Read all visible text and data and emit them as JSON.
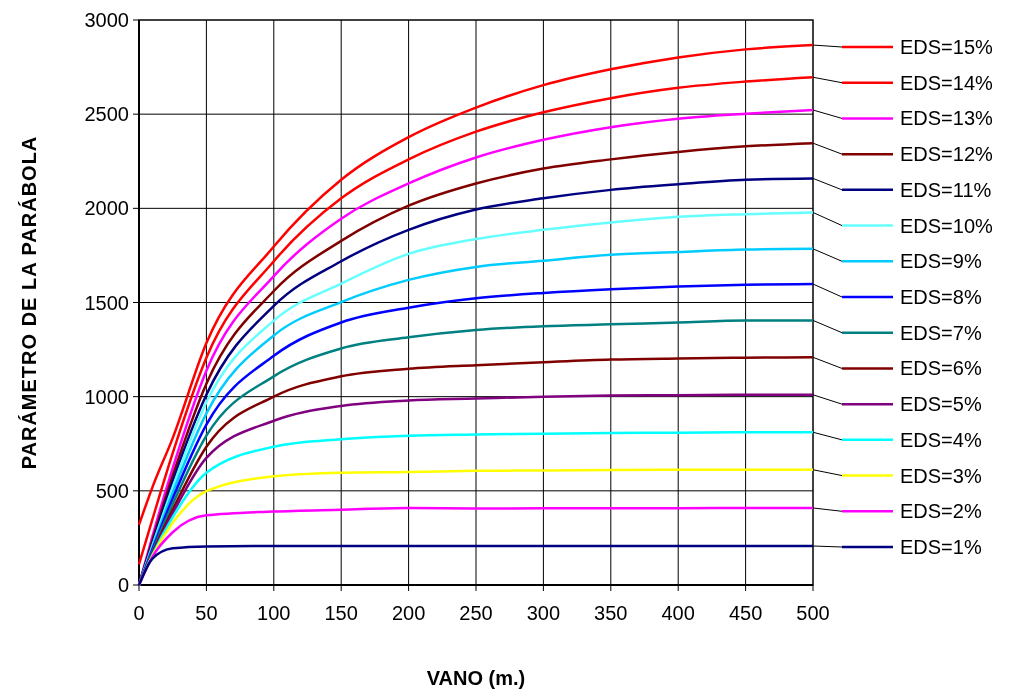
{
  "chart_data": {
    "type": "line",
    "xlabel": "VANO (m.)",
    "ylabel": "PARÁMETRO DE LA PARÁBOLA",
    "x": [
      0,
      10,
      25,
      50,
      100,
      150,
      200,
      250,
      300,
      350,
      400,
      450,
      500
    ],
    "xlim": [
      0,
      500
    ],
    "xticks": [
      0,
      50,
      100,
      150,
      200,
      250,
      300,
      350,
      400,
      450,
      500
    ],
    "ylim": [
      0,
      3000
    ],
    "yticks": [
      0,
      500,
      1000,
      1500,
      2000,
      2500,
      3000
    ],
    "grid": true,
    "legend": "right",
    "marker": "none",
    "line_style": "solid",
    "series": [
      {
        "name": "EDS=15%",
        "color": "#ff0000",
        "values": [
          320,
          520,
          780,
          1285,
          1797,
          2152,
          2378,
          2535,
          2654,
          2738,
          2801,
          2844,
          2867
        ]
      },
      {
        "name": "EDS=14%",
        "color": "#ff0000",
        "values": [
          110,
          350,
          700,
          1207,
          1719,
          2053,
          2260,
          2407,
          2510,
          2585,
          2640,
          2673,
          2696
        ]
      },
      {
        "name": "EDS=13%",
        "color": "#ff00ff",
        "values": [
          0,
          260,
          620,
          1138,
          1640,
          1945,
          2132,
          2270,
          2364,
          2431,
          2476,
          2502,
          2522
        ]
      },
      {
        "name": "EDS=12%",
        "color": "#800000",
        "values": [
          0,
          240,
          580,
          1069,
          1561,
          1827,
          2014,
          2132,
          2211,
          2260,
          2299,
          2329,
          2346
        ]
      },
      {
        "name": "EDS=11%",
        "color": "#000080",
        "values": [
          0,
          225,
          550,
          1010,
          1482,
          1719,
          1886,
          1994,
          2053,
          2098,
          2128,
          2152,
          2159
        ]
      },
      {
        "name": "EDS=10%",
        "color": "#66ffff",
        "values": [
          0,
          210,
          520,
          970,
          1404,
          1600,
          1758,
          1837,
          1886,
          1925,
          1955,
          1969,
          1978
        ]
      },
      {
        "name": "EDS=9%",
        "color": "#00ccff",
        "values": [
          0,
          200,
          490,
          911,
          1325,
          1502,
          1620,
          1689,
          1722,
          1754,
          1768,
          1781,
          1785
        ]
      },
      {
        "name": "EDS=8%",
        "color": "#0000ff",
        "values": [
          0,
          190,
          460,
          852,
          1217,
          1394,
          1472,
          1522,
          1551,
          1571,
          1585,
          1594,
          1598
        ]
      },
      {
        "name": "EDS=7%",
        "color": "#008080",
        "values": [
          0,
          180,
          430,
          793,
          1108,
          1256,
          1315,
          1354,
          1374,
          1384,
          1394,
          1404,
          1405
        ]
      },
      {
        "name": "EDS=6%",
        "color": "#800000",
        "values": [
          0,
          170,
          400,
          734,
          1000,
          1108,
          1148,
          1167,
          1183,
          1197,
          1203,
          1207,
          1209
        ]
      },
      {
        "name": "EDS=5%",
        "color": "#800080",
        "values": [
          0,
          165,
          380,
          675,
          872,
          951,
          980,
          990,
          1000,
          1006,
          1008,
          1010,
          1010
        ]
      },
      {
        "name": "EDS=4%",
        "color": "#00ffff",
        "values": [
          0,
          160,
          360,
          596,
          734,
          774,
          793,
          799,
          803,
          807,
          809,
          811,
          811
        ]
      },
      {
        "name": "EDS=3%",
        "color": "#ffff00",
        "values": [
          0,
          155,
          330,
          498,
          577,
          596,
          600,
          606,
          608,
          610,
          612,
          612,
          612
        ]
      },
      {
        "name": "EDS=2%",
        "color": "#ff00ff",
        "values": [
          0,
          150,
          280,
          370,
          390,
          400,
          409,
          406,
          407,
          407,
          408,
          409,
          409
        ]
      },
      {
        "name": "EDS=1%",
        "color": "#000080",
        "values": [
          0,
          140,
          195,
          205,
          207,
          207,
          207,
          207,
          207,
          207,
          207,
          207,
          207
        ]
      }
    ]
  }
}
